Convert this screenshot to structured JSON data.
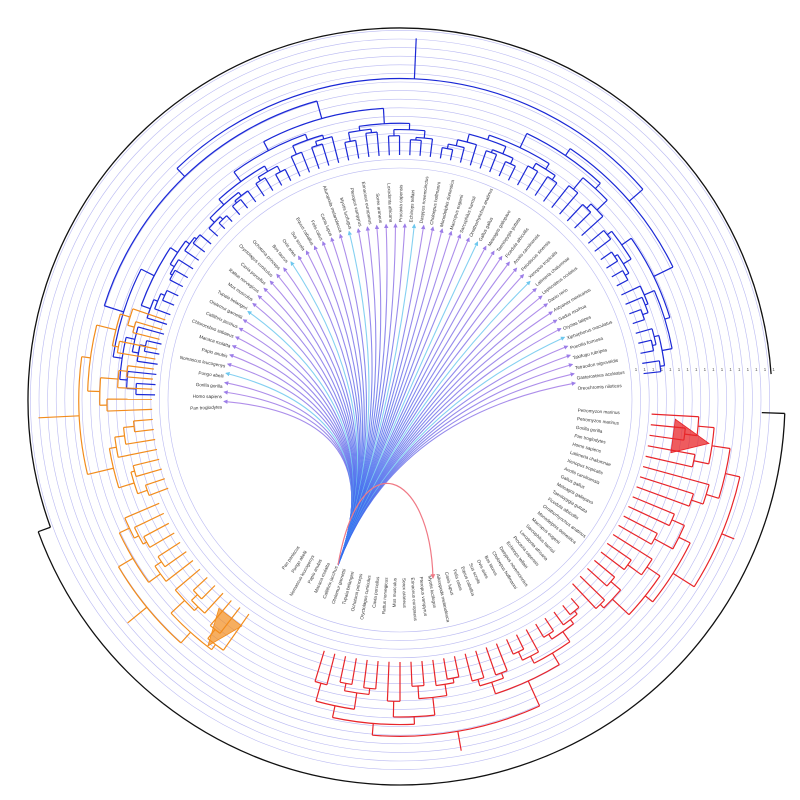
{
  "colors": {
    "blue_clade": "#1a28d6",
    "orange_clade": "#f28c1c",
    "red_clade": "#e8252a",
    "outer_bracket": "#111111",
    "grid_ring": "#b9b9f2",
    "link_from": "#2a6cf0",
    "link_to": "#a57be6",
    "link_cyan": "#6ec8ee",
    "red_link": "#f07a86"
  },
  "icons": {
    "collapsed_red": "red-triangle-icon",
    "collapsed_orange": "orange-triangle-icon"
  },
  "scale_ticks": [
    "1",
    "1",
    "1",
    "1",
    "1",
    "1",
    "1",
    "1",
    "1",
    "1",
    "1",
    "1",
    "1",
    "1",
    "1",
    "1",
    "1"
  ],
  "leaves_upper": [
    "Pan troglodytes",
    "Homo sapiens",
    "Gorilla gorilla",
    "Pongo abelii",
    "Nomascus leucogenys",
    "Papio anubis",
    "Macaca mulatta",
    "Chlorocebus sabaeus",
    "Callithrix jacchus",
    "Otolemur garnettii",
    "Tupaia belangeri",
    "Mus musculus",
    "Rattus norvegicus",
    "Cavia porcellus",
    "Oryctolagus cuniculus",
    "Ochotona princeps",
    "Bos taurus",
    "Ovis aries",
    "Sus scrofa",
    "Equus caballus",
    "Felis catus",
    "Canis lupus",
    "Ailuropoda melanoleuca",
    "Myotis lucifugus",
    "Pteropus vampyrus",
    "Erinaceus europaeus",
    "Sorex araneus",
    "Loxodonta africana",
    "Procavia capensis",
    "Echinops telfairi",
    "Dasypus novemcinctus",
    "Choloepus hoffmanni",
    "Monodelphis domestica",
    "Macropus eugenii",
    "Sarcophilus harrisii",
    "Ornithorhynchus anatinus",
    "Gallus gallus",
    "Meleagris gallopavo",
    "Taeniopygia guttata",
    "Ficedula albicollis",
    "Anolis carolinensis",
    "Pelodiscus sinensis",
    "Xenopus tropicalis",
    "Latimeria chalumnae",
    "Lepisosteus oculatus",
    "Danio rerio",
    "Astyanax mexicanus",
    "Gadus morhua",
    "Oryzias latipes",
    "Xiphophorus maculatus",
    "Poecilia formosa",
    "Takifugu rubripes",
    "Tetraodon nigroviridis",
    "Gasterosteus aculeatus",
    "Oreochromis niloticus"
  ],
  "leaves_lower": [
    "Petromyzon marinus",
    "Petromyzon marinus",
    "Gorilla gorilla",
    "Pan troglodytes",
    "Homo sapiens",
    "Latimeria chalumnae",
    "Xenopus tropicalis",
    "Anolis carolinensis",
    "Gallus gallus",
    "Meleagris gallopavo",
    "Taeniopygia guttata",
    "Ficedula albicollis",
    "Ornithorhynchus anatinus",
    "Monodelphis domestica",
    "Macropus eugenii",
    "Sarcophilus harrisii",
    "Loxodonta africana",
    "Procavia capensis",
    "Echinops telfairi",
    "Dasypus novemcinctus",
    "Choloepus hoffmanni",
    "Bos taurus",
    "Ovis aries",
    "Sus scrofa",
    "Equus caballus",
    "Felis catus",
    "Canis lupus",
    "Ailuropoda melanoleuca",
    "Myotis lucifugus",
    "Pteropus vampyrus",
    "Erinaceus europaeus",
    "Sorex araneus",
    "Mus musculus",
    "Rattus norvegicus",
    "Cavia porcellus",
    "Oryctolagus cuniculus",
    "Ochotona princeps",
    "Tupaia belangeri",
    "Otolemur garnettii",
    "Callithrix jacchus",
    "Macaca mulatta",
    "Papio anubis",
    "Nomascus leucogenys",
    "Pongo abelii",
    "Pan paniscus"
  ]
}
